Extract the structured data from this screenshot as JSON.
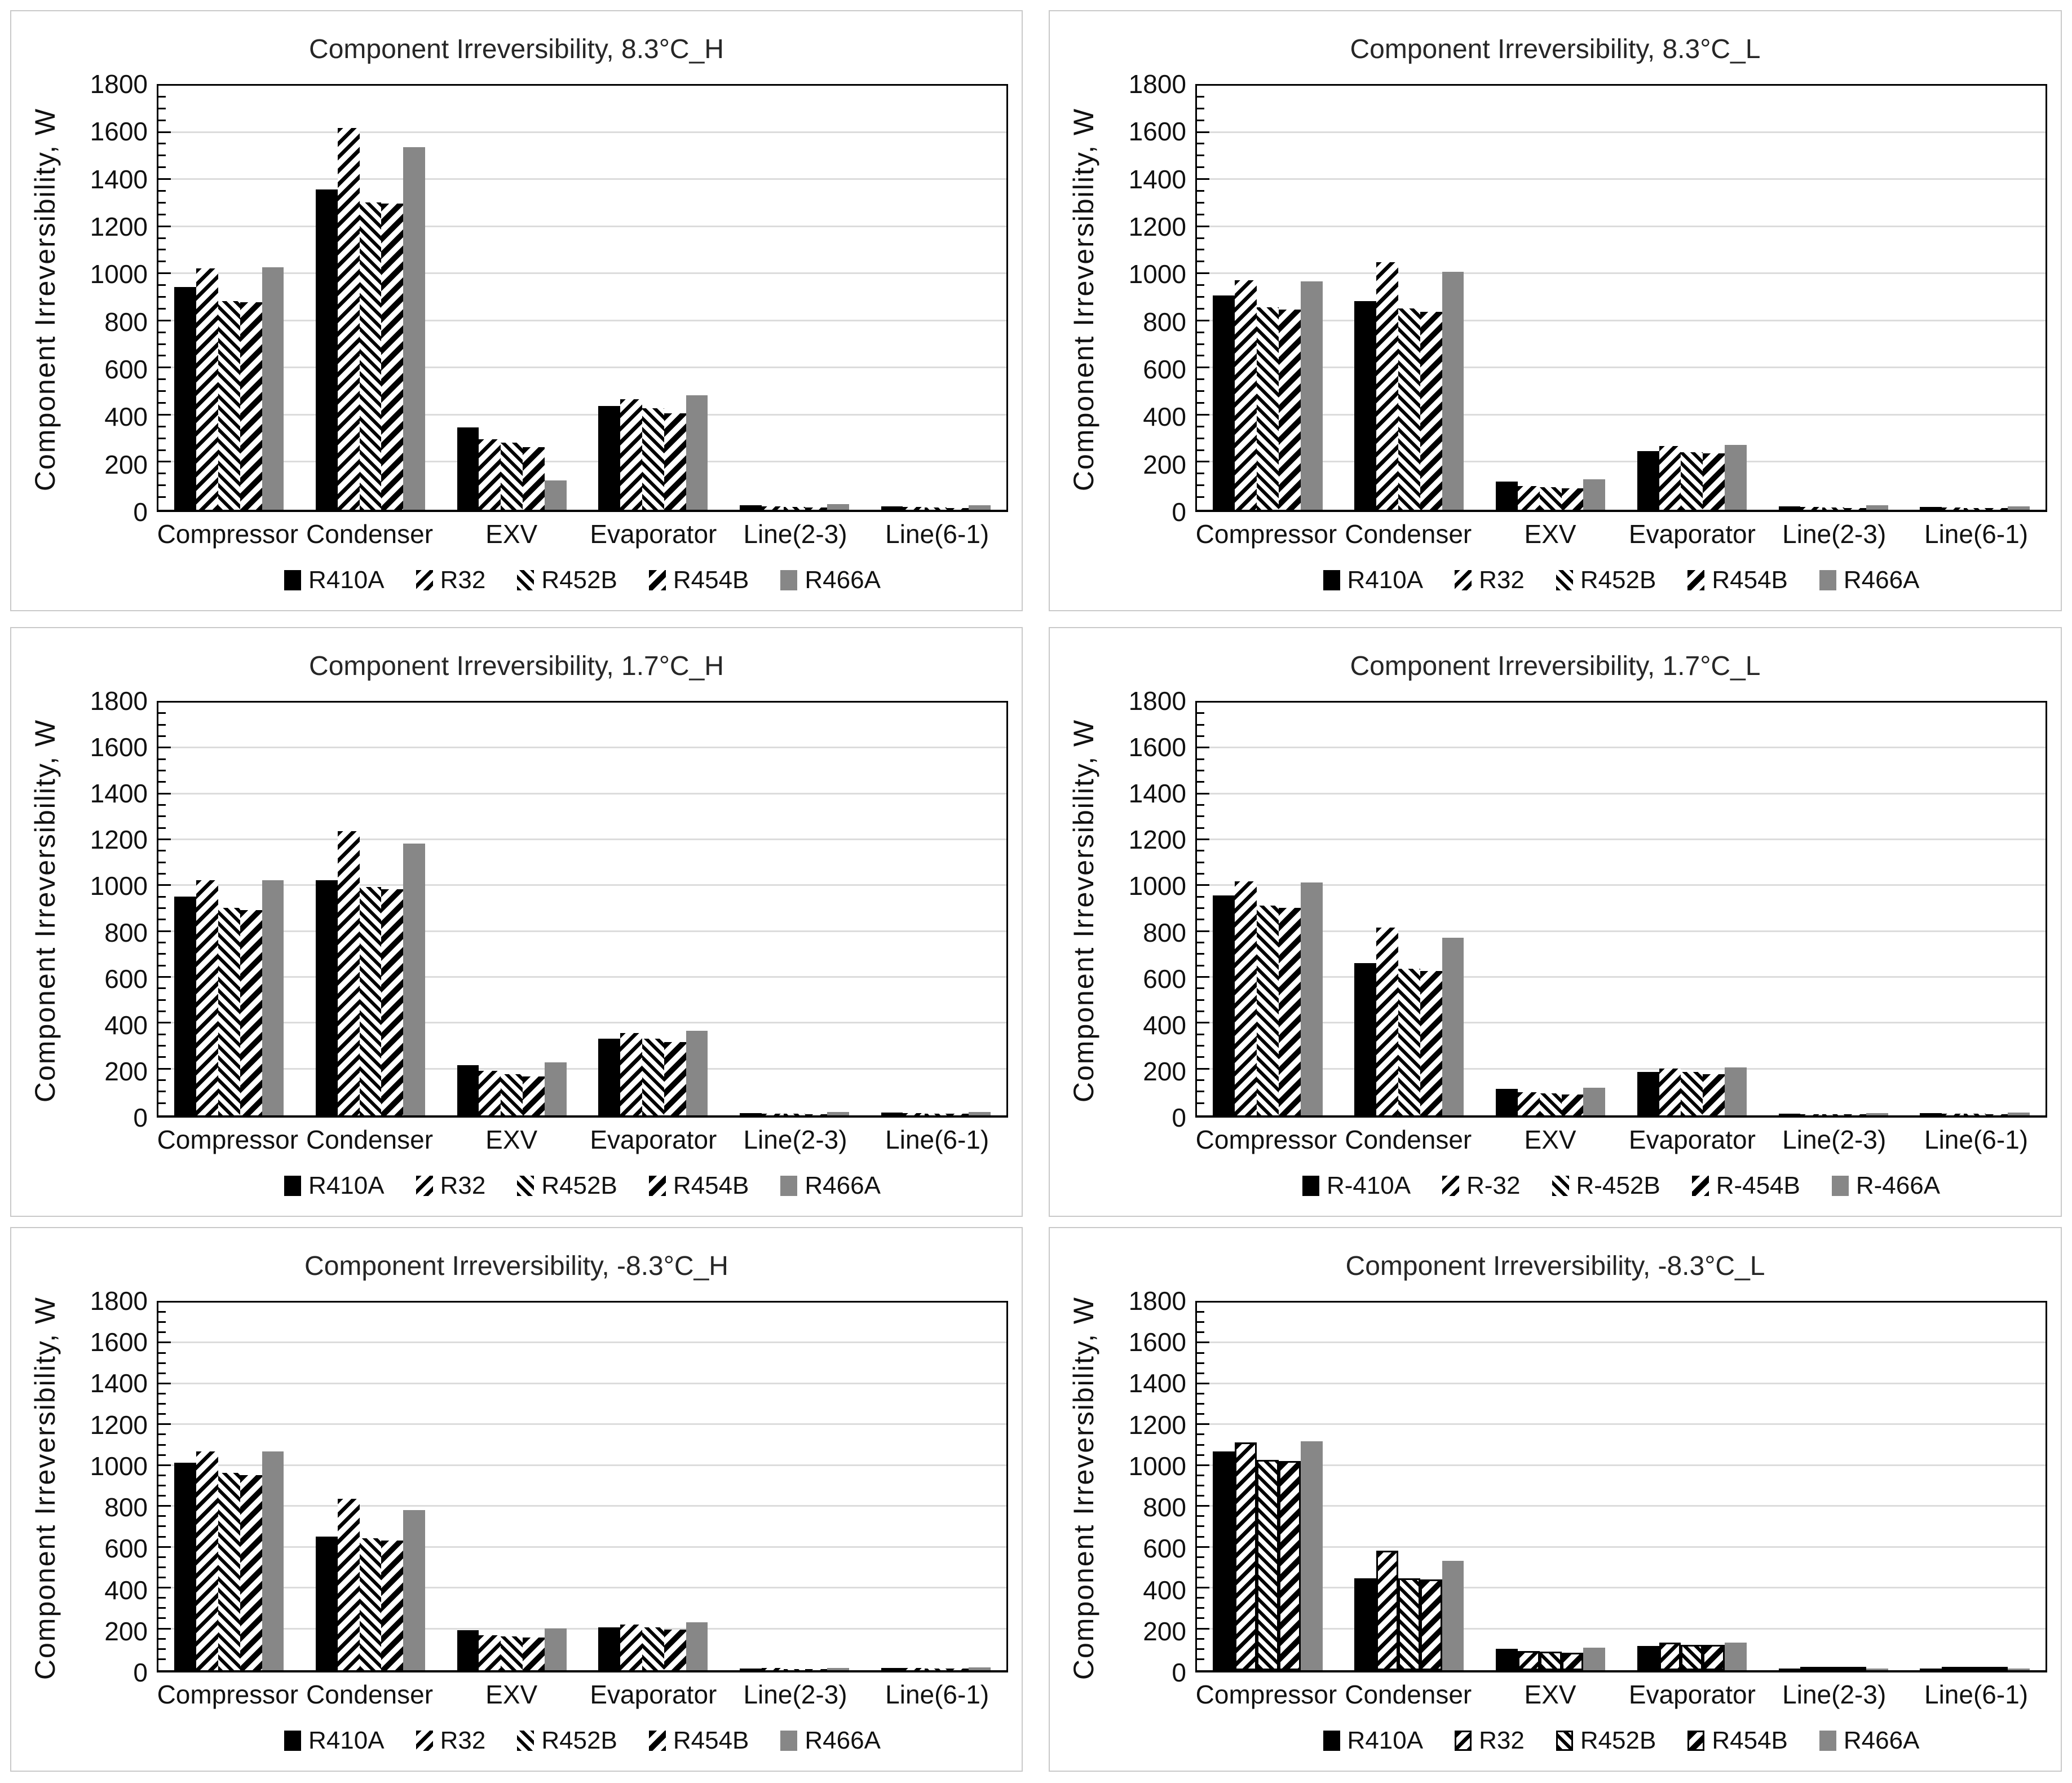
{
  "page": {
    "background": "#ffffff"
  },
  "colors": {
    "bar_black": "#000000",
    "bar_gray": "#878787",
    "gridline": "#dcdcdc",
    "axis_line": "#000000",
    "panel_border": "#c9c9c9",
    "text": "#1a1a1a"
  },
  "axis": {
    "y_label": "Component Irreversibility, W",
    "ylim": [
      0,
      1800
    ],
    "y_tick_step": 200,
    "y_minor_tick_step": 50,
    "y_ticks": [
      1800,
      1600,
      1400,
      1200,
      1000,
      800,
      600,
      400,
      200,
      0
    ],
    "grid": true,
    "legend_position": "bottom"
  },
  "chart_data": [
    {
      "type": "bar",
      "title": "Component Irreversibility, 8.3°C_H",
      "ylabel": "Component Irreversibility, W",
      "ylim": [
        0,
        1800
      ],
      "outlined": false,
      "categories": [
        "Compressor",
        "Condenser",
        "EXV",
        "Evaporator",
        "Line(2-3)",
        "Line(6-1)"
      ],
      "series": [
        {
          "name": "R410A",
          "pattern": "solid-black",
          "values": [
            945,
            1360,
            350,
            440,
            20,
            15
          ]
        },
        {
          "name": "R32",
          "pattern": "diag-down",
          "values": [
            1025,
            1620,
            300,
            470,
            15,
            12
          ]
        },
        {
          "name": "R452B",
          "pattern": "diag-up",
          "values": [
            885,
            1305,
            285,
            430,
            12,
            10
          ]
        },
        {
          "name": "R454B",
          "pattern": "diag-down-bold",
          "values": [
            880,
            1300,
            265,
            410,
            10,
            8
          ]
        },
        {
          "name": "R466A",
          "pattern": "solid-gray",
          "values": [
            1030,
            1540,
            125,
            485,
            25,
            18
          ]
        }
      ]
    },
    {
      "type": "bar",
      "title": "Component Irreversibility, 8.3°C_L",
      "ylabel": "Component Irreversibility, W",
      "ylim": [
        0,
        1800
      ],
      "outlined": false,
      "categories": [
        "Compressor",
        "Condenser",
        "EXV",
        "Evaporator",
        "Line(2-3)",
        "Line(6-1)"
      ],
      "series": [
        {
          "name": "R410A",
          "pattern": "solid-black",
          "values": [
            910,
            885,
            120,
            250,
            15,
            12
          ]
        },
        {
          "name": "R32",
          "pattern": "diag-down",
          "values": [
            975,
            1050,
            100,
            270,
            12,
            10
          ]
        },
        {
          "name": "R452B",
          "pattern": "diag-up",
          "values": [
            860,
            855,
            95,
            245,
            10,
            8
          ]
        },
        {
          "name": "R454B",
          "pattern": "diag-down-bold",
          "values": [
            850,
            840,
            90,
            240,
            8,
            8
          ]
        },
        {
          "name": "R466A",
          "pattern": "solid-gray",
          "values": [
            970,
            1010,
            130,
            275,
            18,
            15
          ]
        }
      ]
    },
    {
      "type": "bar",
      "title": "Component Irreversibility, 1.7°C_H",
      "ylabel": "Component Irreversibility, W",
      "ylim": [
        0,
        1800
      ],
      "outlined": false,
      "categories": [
        "Compressor",
        "Condenser",
        "EXV",
        "Evaporator",
        "Line(2-3)",
        "Line(6-1)"
      ],
      "series": [
        {
          "name": "R410A",
          "pattern": "solid-black",
          "values": [
            955,
            1025,
            220,
            335,
            10,
            12
          ]
        },
        {
          "name": "R32",
          "pattern": "diag-down",
          "values": [
            1025,
            1240,
            195,
            360,
            8,
            10
          ]
        },
        {
          "name": "R452B",
          "pattern": "diag-up",
          "values": [
            905,
            995,
            180,
            335,
            8,
            8
          ]
        },
        {
          "name": "R454B",
          "pattern": "diag-down-bold",
          "values": [
            895,
            985,
            170,
            320,
            6,
            8
          ]
        },
        {
          "name": "R466A",
          "pattern": "solid-gray",
          "values": [
            1025,
            1185,
            230,
            370,
            15,
            15
          ]
        }
      ]
    },
    {
      "type": "bar",
      "title": "Component Irreversibility, 1.7°C_L",
      "ylabel": "Component Irreversibility, W",
      "ylim": [
        0,
        1800
      ],
      "outlined": false,
      "categories": [
        "Compressor",
        "Condenser",
        "EXV",
        "Evaporator",
        "Line(2-3)",
        "Line(6-1)"
      ],
      "series": [
        {
          "name": "R-410A",
          "pattern": "solid-black",
          "values": [
            960,
            665,
            115,
            190,
            8,
            10
          ]
        },
        {
          "name": "R-32",
          "pattern": "diag-down",
          "values": [
            1020,
            820,
            100,
            205,
            6,
            8
          ]
        },
        {
          "name": "R-452B",
          "pattern": "diag-up",
          "values": [
            915,
            640,
            95,
            190,
            6,
            8
          ]
        },
        {
          "name": "R-454B",
          "pattern": "diag-down-bold",
          "values": [
            905,
            630,
            90,
            180,
            5,
            6
          ]
        },
        {
          "name": "R-466A",
          "pattern": "solid-gray",
          "values": [
            1015,
            775,
            120,
            210,
            10,
            12
          ]
        }
      ]
    },
    {
      "type": "bar",
      "title": "Component Irreversibility, -8.3°C_H",
      "ylabel": "Component Irreversibility, W",
      "ylim": [
        0,
        1800
      ],
      "outlined": false,
      "categories": [
        "Compressor",
        "Condenser",
        "EXV",
        "Evaporator",
        "Line(2-3)",
        "Line(6-1)"
      ],
      "series": [
        {
          "name": "R410A",
          "pattern": "solid-black",
          "values": [
            1015,
            655,
            195,
            210,
            8,
            12
          ]
        },
        {
          "name": "R32",
          "pattern": "diag-down",
          "values": [
            1070,
            840,
            170,
            225,
            10,
            10
          ]
        },
        {
          "name": "R452B",
          "pattern": "diag-up",
          "values": [
            965,
            645,
            165,
            210,
            6,
            8
          ]
        },
        {
          "name": "R454B",
          "pattern": "diag-down-bold",
          "values": [
            955,
            635,
            160,
            200,
            5,
            8
          ]
        },
        {
          "name": "R466A",
          "pattern": "solid-gray",
          "values": [
            1070,
            785,
            205,
            235,
            10,
            15
          ]
        }
      ]
    },
    {
      "type": "bar",
      "title": "Component Irreversibility, -8.3°C_L",
      "ylabel": "Component Irreversibility, W",
      "ylim": [
        0,
        1800
      ],
      "outlined": true,
      "categories": [
        "Compressor",
        "Condenser",
        "EXV",
        "Evaporator",
        "Line(2-3)",
        "Line(6-1)"
      ],
      "series": [
        {
          "name": "R410A",
          "pattern": "solid-black",
          "values": [
            1070,
            450,
            105,
            120,
            8,
            8
          ]
        },
        {
          "name": "R32",
          "pattern": "diag-down",
          "values": [
            1115,
            585,
            95,
            135,
            8,
            8
          ]
        },
        {
          "name": "R452B",
          "pattern": "diag-up",
          "values": [
            1030,
            450,
            90,
            125,
            6,
            8
          ]
        },
        {
          "name": "R454B",
          "pattern": "diag-down-bold",
          "values": [
            1025,
            445,
            85,
            125,
            6,
            6
          ]
        },
        {
          "name": "R466A",
          "pattern": "solid-gray",
          "values": [
            1120,
            535,
            110,
            135,
            8,
            8
          ]
        }
      ]
    }
  ]
}
